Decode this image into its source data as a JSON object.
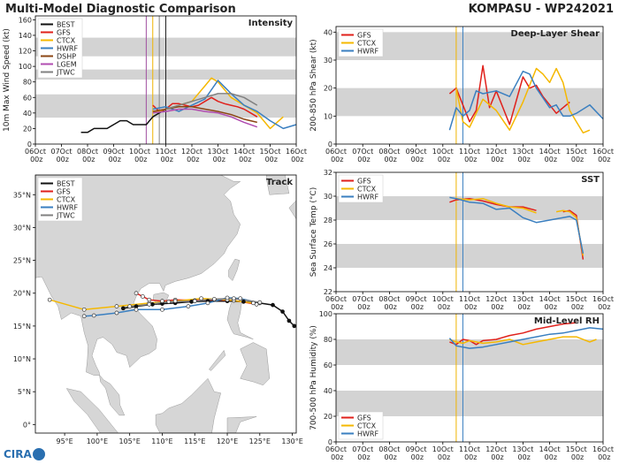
{
  "header": {
    "title": "Multi-Model Diagnostic Comparison",
    "storm": "KOMPASU - WP242021"
  },
  "logo": "CIRA",
  "chart_data": [
    {
      "type": "line",
      "title": "Intensity",
      "ylabel": "10m Max Wind Speed (kt)",
      "xlim": [
        0,
        10
      ],
      "xticks": [
        {
          "value": 0,
          "label": "06Oct 00z"
        },
        {
          "value": 1,
          "label": "07Oct 00z"
        },
        {
          "value": 2,
          "label": "08Oct 00z"
        },
        {
          "value": 3,
          "label": "09Oct 00z"
        },
        {
          "value": 4,
          "label": "10Oct 00z"
        },
        {
          "value": 5,
          "label": "11Oct 00z"
        },
        {
          "value": 6,
          "label": "12Oct 00z"
        },
        {
          "value": 7,
          "label": "13Oct 00z"
        },
        {
          "value": 8,
          "label": "14Oct 00z"
        },
        {
          "value": 9,
          "label": "15Oct 00z"
        },
        {
          "value": 10,
          "label": "16Oct 00z"
        }
      ],
      "ylim": [
        0,
        165
      ],
      "yticks": [
        0,
        20,
        40,
        60,
        80,
        100,
        120,
        140,
        160
      ],
      "bands": [
        [
          34,
          64
        ],
        [
          83,
          96
        ],
        [
          113,
          137
        ]
      ],
      "vlines": [
        {
          "value": 4.25,
          "color": "#a050a0"
        },
        {
          "value": 4.5,
          "color": "#f0b400"
        },
        {
          "value": 4.75,
          "color": "#808080"
        },
        {
          "value": 5.0,
          "color": "#222222"
        }
      ],
      "legend": "upper left",
      "series": [
        {
          "name": "BEST",
          "color": "#111111",
          "x": [
            1.75,
            2.0,
            2.25,
            2.5,
            2.75,
            3.0,
            3.25,
            3.5,
            3.75,
            4.0,
            4.25,
            4.5,
            4.75,
            5.0
          ],
          "values": [
            15,
            15,
            20,
            20,
            20,
            25,
            30,
            30,
            25,
            25,
            25,
            35,
            40,
            45
          ]
        },
        {
          "name": "GFS",
          "color": "#e0201b",
          "x": [
            4.5,
            4.75,
            5.0,
            5.25,
            5.5,
            5.75,
            6.0,
            6.25,
            6.5,
            6.75,
            7.0,
            7.25,
            7.5,
            7.75,
            8.0,
            8.25,
            8.5
          ],
          "values": [
            50,
            42,
            45,
            52,
            52,
            50,
            48,
            50,
            55,
            60,
            55,
            52,
            50,
            48,
            45,
            40,
            35
          ]
        },
        {
          "name": "CTCX",
          "color": "#f5b800",
          "x": [
            4.5,
            5.0,
            5.5,
            6.0,
            6.5,
            6.75,
            7.0,
            7.5,
            8.0,
            8.5,
            9.0,
            9.5
          ],
          "values": [
            40,
            45,
            50,
            55,
            75,
            85,
            80,
            60,
            50,
            40,
            20,
            35
          ]
        },
        {
          "name": "HWRF",
          "color": "#3a7fc0",
          "x": [
            4.5,
            5.0,
            5.5,
            6.0,
            6.5,
            7.0,
            7.5,
            8.0,
            8.5,
            9.0,
            9.5,
            10.0
          ],
          "values": [
            45,
            48,
            42,
            50,
            58,
            82,
            65,
            50,
            42,
            30,
            20,
            25
          ]
        },
        {
          "name": "DSHP",
          "color": "#8b4513",
          "x": [
            4.5,
            5.0,
            5.5,
            6.0,
            6.5,
            7.0,
            7.5,
            8.0,
            8.5
          ],
          "values": [
            42,
            45,
            48,
            48,
            45,
            42,
            38,
            32,
            28
          ]
        },
        {
          "name": "LGEM",
          "color": "#b04cb0",
          "x": [
            4.5,
            5.0,
            5.5,
            6.0,
            6.5,
            7.0,
            7.5,
            8.0,
            8.5
          ],
          "values": [
            40,
            42,
            45,
            45,
            42,
            40,
            35,
            28,
            22
          ]
        },
        {
          "name": "JTWC",
          "color": "#808080",
          "x": [
            5.0,
            5.5,
            6.0,
            6.5,
            7.0,
            7.5,
            8.0,
            8.5
          ],
          "values": [
            45,
            50,
            55,
            60,
            65,
            65,
            60,
            50
          ]
        }
      ]
    },
    {
      "type": "line",
      "title": "Deep-Layer Shear",
      "ylabel": "200-850 hPa Shear (kt)",
      "xlim": [
        0,
        10
      ],
      "xticks": [
        {
          "value": 0,
          "label": "06Oct 00z"
        },
        {
          "value": 1,
          "label": "07Oct 00z"
        },
        {
          "value": 2,
          "label": "08Oct 00z"
        },
        {
          "value": 3,
          "label": "09Oct 00z"
        },
        {
          "value": 4,
          "label": "10Oct 00z"
        },
        {
          "value": 5,
          "label": "11Oct 00z"
        },
        {
          "value": 6,
          "label": "12Oct 00z"
        },
        {
          "value": 7,
          "label": "13Oct 00z"
        },
        {
          "value": 8,
          "label": "14Oct 00z"
        },
        {
          "value": 9,
          "label": "15Oct 00z"
        },
        {
          "value": 10,
          "label": "16Oct 00z"
        }
      ],
      "ylim": [
        0,
        42
      ],
      "yticks": [
        0,
        10,
        20,
        30,
        40
      ],
      "bands": [
        [
          10,
          20
        ],
        [
          30,
          40
        ]
      ],
      "vlines": [
        {
          "value": 4.5,
          "color": "#f0b400"
        },
        {
          "value": 4.75,
          "color": "#3a7fc0"
        }
      ],
      "legend": "upper left",
      "series": [
        {
          "name": "GFS",
          "color": "#e0201b",
          "x": [
            4.25,
            4.5,
            5.0,
            5.25,
            5.5,
            5.75,
            6.0,
            6.5,
            7.0,
            7.25,
            7.5,
            7.75,
            8.0,
            8.25,
            8.5,
            8.75
          ],
          "values": [
            18,
            20,
            8,
            12,
            28,
            13,
            19,
            7,
            24,
            20,
            21,
            17,
            14,
            11,
            13,
            15
          ]
        },
        {
          "name": "CTCX",
          "color": "#f5b800",
          "x": [
            4.5,
            4.75,
            5.0,
            5.5,
            6.0,
            6.5,
            7.0,
            7.5,
            7.75,
            8.0,
            8.25,
            8.5,
            8.75,
            9.0,
            9.25,
            9.5
          ],
          "values": [
            20,
            8,
            6,
            16,
            12,
            5,
            15,
            27,
            25,
            22,
            27,
            22,
            12,
            8,
            4,
            5
          ]
        },
        {
          "name": "HWRF",
          "color": "#3a7fc0",
          "x": [
            4.25,
            4.5,
            4.75,
            5.0,
            5.25,
            5.5,
            6.0,
            6.5,
            7.0,
            7.25,
            7.5,
            8.0,
            8.25,
            8.5,
            8.75,
            9.0,
            9.5,
            10.0
          ],
          "values": [
            5,
            13,
            10,
            12,
            19,
            18,
            19,
            17,
            26,
            25,
            20,
            13,
            14,
            10,
            10,
            11,
            14,
            9
          ]
        }
      ]
    },
    {
      "type": "line",
      "title": "SST",
      "ylabel": "Sea Surface Temp (°C)",
      "xlim": [
        0,
        10
      ],
      "xticks": [
        {
          "value": 0,
          "label": "06Oct 00z"
        },
        {
          "value": 1,
          "label": "07Oct 00z"
        },
        {
          "value": 2,
          "label": "08Oct 00z"
        },
        {
          "value": 3,
          "label": "09Oct 00z"
        },
        {
          "value": 4,
          "label": "10Oct 00z"
        },
        {
          "value": 5,
          "label": "11Oct 00z"
        },
        {
          "value": 6,
          "label": "12Oct 00z"
        },
        {
          "value": 7,
          "label": "13Oct 00z"
        },
        {
          "value": 8,
          "label": "14Oct 00z"
        },
        {
          "value": 9,
          "label": "15Oct 00z"
        },
        {
          "value": 10,
          "label": "16Oct 00z"
        }
      ],
      "ylim": [
        22,
        32
      ],
      "yticks": [
        22,
        24,
        26,
        28,
        30,
        32
      ],
      "bands": [
        [
          24,
          26
        ],
        [
          28,
          30
        ]
      ],
      "vlines": [
        {
          "value": 4.5,
          "color": "#f0b400"
        },
        {
          "value": 4.75,
          "color": "#3a7fc0"
        }
      ],
      "legend": "upper left",
      "series": [
        {
          "name": "GFS",
          "color": "#e0201b",
          "x": [
            4.25,
            4.5,
            5.0,
            5.5,
            6.0,
            6.5,
            7.0,
            7.5,
            8.0,
            8.5,
            8.75,
            9.0,
            9.25
          ],
          "values": [
            29.5,
            29.7,
            29.8,
            29.6,
            29.3,
            29.1,
            29.1,
            28.8,
            null,
            28.7,
            28.8,
            28.4,
            24.7
          ]
        },
        {
          "name": "CTCX",
          "color": "#f5b800",
          "x": [
            4.5,
            5.0,
            5.5,
            6.0,
            6.5,
            7.0,
            7.5,
            8.0,
            8.25,
            8.5,
            8.75,
            9.0,
            9.25
          ],
          "values": [
            29.8,
            29.7,
            29.8,
            29.4,
            29.1,
            29.0,
            28.6,
            null,
            28.7,
            28.8,
            28.7,
            28.2,
            25.0
          ]
        },
        {
          "name": "HWRF",
          "color": "#3a7fc0",
          "x": [
            4.25,
            4.5,
            5.0,
            5.5,
            6.0,
            6.5,
            6.75,
            7.0,
            7.5,
            8.0,
            8.5,
            8.75,
            9.0,
            9.25
          ],
          "values": [
            29.9,
            29.8,
            29.5,
            29.4,
            28.9,
            29.0,
            28.6,
            28.2,
            27.8,
            28.0,
            28.2,
            28.3,
            28.0,
            25.2
          ]
        }
      ]
    },
    {
      "type": "line",
      "title": "Mid-Level RH",
      "ylabel": "700-500 hPa Humidity (%)",
      "xlim": [
        0,
        10
      ],
      "xticks": [
        {
          "value": 0,
          "label": "06Oct 00z"
        },
        {
          "value": 1,
          "label": "07Oct 00z"
        },
        {
          "value": 2,
          "label": "08Oct 00z"
        },
        {
          "value": 3,
          "label": "09Oct 00z"
        },
        {
          "value": 4,
          "label": "10Oct 00z"
        },
        {
          "value": 5,
          "label": "11Oct 00z"
        },
        {
          "value": 6,
          "label": "12Oct 00z"
        },
        {
          "value": 7,
          "label": "13Oct 00z"
        },
        {
          "value": 8,
          "label": "14Oct 00z"
        },
        {
          "value": 9,
          "label": "15Oct 00z"
        },
        {
          "value": 10,
          "label": "16Oct 00z"
        }
      ],
      "ylim": [
        0,
        100
      ],
      "yticks": [
        0,
        20,
        40,
        60,
        80,
        100
      ],
      "bands": [
        [
          20,
          40
        ],
        [
          60,
          80
        ]
      ],
      "vlines": [
        {
          "value": 4.5,
          "color": "#f0b400"
        },
        {
          "value": 4.75,
          "color": "#3a7fc0"
        }
      ],
      "legend": "lower left",
      "series": [
        {
          "name": "GFS",
          "color": "#e0201b",
          "x": [
            4.25,
            4.5,
            4.75,
            5.0,
            5.25,
            5.5,
            6.0,
            6.5,
            7.0,
            7.5,
            8.0,
            8.5,
            9.0
          ],
          "values": [
            78,
            76,
            80,
            79,
            76,
            79,
            80,
            83,
            85,
            88,
            90,
            92,
            93
          ]
        },
        {
          "name": "CTCX",
          "color": "#f5b800",
          "x": [
            4.25,
            4.5,
            4.75,
            5.0,
            5.5,
            6.0,
            6.5,
            7.0,
            7.5,
            8.0,
            8.5,
            9.0,
            9.5,
            9.75
          ],
          "values": [
            80,
            78,
            77,
            79,
            77,
            78,
            80,
            76,
            78,
            80,
            82,
            82,
            78,
            80
          ]
        },
        {
          "name": "HWRF",
          "color": "#3a7fc0",
          "x": [
            4.25,
            4.5,
            5.0,
            5.5,
            6.0,
            6.5,
            7.0,
            7.5,
            8.0,
            8.5,
            9.0,
            9.5,
            10.0
          ],
          "values": [
            81,
            75,
            73,
            74,
            76,
            78,
            80,
            82,
            84,
            85,
            87,
            89,
            88
          ]
        }
      ]
    },
    {
      "type": "map",
      "title": "Track",
      "xlim": [
        90.5,
        130.6
      ],
      "ylim": [
        -1.3,
        38
      ],
      "xticks": [
        {
          "value": 95,
          "label": "95°E"
        },
        {
          "value": 100,
          "label": "100°E"
        },
        {
          "value": 105,
          "label": "105°E"
        },
        {
          "value": 110,
          "label": "110°E"
        },
        {
          "value": 115,
          "label": "115°E"
        },
        {
          "value": 120,
          "label": "120°E"
        },
        {
          "value": 125,
          "label": "125°E"
        },
        {
          "value": 130,
          "label": "130°E"
        }
      ],
      "yticks": [
        {
          "value": 0,
          "label": "0°"
        },
        {
          "value": 5,
          "label": "5°N"
        },
        {
          "value": 10,
          "label": "10°N"
        },
        {
          "value": 15,
          "label": "15°N"
        },
        {
          "value": 20,
          "label": "20°N"
        },
        {
          "value": 25,
          "label": "25°N"
        },
        {
          "value": 30,
          "label": "30°N"
        },
        {
          "value": 35,
          "label": "35°N"
        }
      ],
      "legend": "upper left",
      "series": [
        {
          "name": "BEST",
          "color": "#111111",
          "marker": "filled",
          "lon": [
            130.3,
            129.5,
            128.5,
            127.0,
            125.0,
            122.5,
            120.0,
            117.0,
            114.5,
            112.0,
            110.0,
            108.5,
            106.0,
            104.0
          ],
          "lat": [
            15.0,
            15.8,
            17.2,
            18.2,
            18.5,
            18.7,
            18.8,
            18.8,
            18.7,
            18.5,
            18.4,
            18.3,
            18.0,
            17.7
          ]
        },
        {
          "name": "GFS",
          "color": "#e0201b",
          "marker": "open",
          "lon": [
            124.5,
            121.0,
            118.0,
            115.0,
            112.0,
            110.0,
            108.0,
            107.0,
            106.0
          ],
          "lat": [
            18.3,
            18.9,
            19.0,
            18.9,
            19.0,
            18.8,
            19.0,
            19.5,
            20.0
          ]
        },
        {
          "name": "CTCX",
          "color": "#f5b800",
          "marker": "open",
          "lon": [
            124.0,
            120.0,
            116.0,
            112.0,
            108.0,
            103.0,
            98.0,
            92.7
          ],
          "lat": [
            18.5,
            19.0,
            19.2,
            18.8,
            18.5,
            18.0,
            17.5,
            19.0
          ]
        },
        {
          "name": "HWRF",
          "color": "#3a7fc0",
          "marker": "open",
          "lon": [
            125.0,
            122.0,
            120.0,
            117.0,
            114.0,
            110.0,
            106.0,
            103.0,
            99.5,
            98.0
          ],
          "lat": [
            18.5,
            19.2,
            19.3,
            18.5,
            18.0,
            17.5,
            17.5,
            17.0,
            16.6,
            16.5
          ]
        },
        {
          "name": "JTWC",
          "color": "#808080",
          "marker": "open",
          "lon": [
            125.0,
            121.0,
            118.0,
            115.0,
            111.0,
            108.0,
            105.0
          ],
          "lat": [
            18.6,
            19.2,
            19.1,
            18.8,
            18.7,
            18.3,
            18.0
          ]
        }
      ]
    }
  ]
}
